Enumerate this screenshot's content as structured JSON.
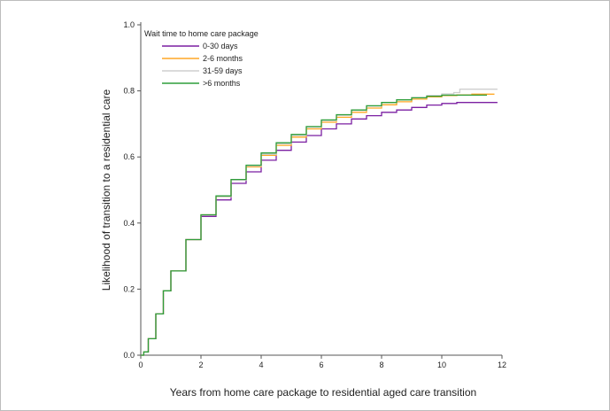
{
  "chart_data": {
    "type": "line",
    "title": "",
    "xlabel": "Years from home care package to residential aged care transition",
    "ylabel": "Likelihood of transition to a residential care",
    "xlim": [
      0,
      12
    ],
    "ylim": [
      0,
      1.0
    ],
    "xticks": [
      0,
      2,
      4,
      6,
      8,
      10,
      12
    ],
    "yticks": [
      "0.0",
      "0.2",
      "0.4",
      "0.6",
      "0.8",
      "1.0"
    ],
    "legend": {
      "title": "Wait time to home care package",
      "placement": "top-left"
    },
    "series": [
      {
        "name": "0-30 days",
        "color": "#7b1fa2",
        "x": [
          0,
          0.1,
          0.25,
          0.5,
          0.75,
          1,
          1.5,
          2,
          2.5,
          3,
          3.5,
          4,
          4.5,
          5,
          5.5,
          6,
          6.5,
          7,
          7.5,
          8,
          8.5,
          9,
          9.5,
          10,
          10.5,
          11,
          11.5,
          11.85
        ],
        "y": [
          0,
          0.01,
          0.05,
          0.125,
          0.195,
          0.255,
          0.35,
          0.42,
          0.47,
          0.52,
          0.555,
          0.59,
          0.62,
          0.645,
          0.665,
          0.685,
          0.7,
          0.715,
          0.725,
          0.735,
          0.742,
          0.75,
          0.757,
          0.762,
          0.765,
          0.765,
          0.765,
          0.765
        ]
      },
      {
        "name": "2-6 months",
        "color": "#ffa726",
        "x": [
          0,
          0.1,
          0.25,
          0.5,
          0.75,
          1,
          1.5,
          2,
          2.5,
          3,
          3.5,
          4,
          4.5,
          5,
          5.5,
          6,
          6.5,
          7,
          7.5,
          8,
          8.5,
          9,
          9.5,
          10,
          10.5,
          11,
          11.5,
          11.75
        ],
        "y": [
          0,
          0.01,
          0.05,
          0.125,
          0.195,
          0.255,
          0.35,
          0.425,
          0.48,
          0.53,
          0.57,
          0.605,
          0.635,
          0.66,
          0.685,
          0.705,
          0.72,
          0.735,
          0.748,
          0.758,
          0.767,
          0.775,
          0.782,
          0.786,
          0.788,
          0.79,
          0.79,
          0.79
        ]
      },
      {
        "name": "31-59 days",
        "color": "#cfcfcf",
        "x": [
          0,
          0.1,
          0.25,
          0.5,
          0.75,
          1,
          1.5,
          2,
          2.5,
          3,
          3.5,
          4,
          4.5,
          5,
          5.5,
          6,
          6.5,
          7,
          7.5,
          8,
          8.5,
          9,
          9.5,
          10,
          10.4,
          10.6,
          11,
          11.5,
          11.85
        ],
        "y": [
          0,
          0.01,
          0.05,
          0.125,
          0.195,
          0.255,
          0.35,
          0.425,
          0.48,
          0.53,
          0.573,
          0.608,
          0.64,
          0.665,
          0.69,
          0.71,
          0.726,
          0.741,
          0.754,
          0.765,
          0.773,
          0.78,
          0.786,
          0.791,
          0.795,
          0.805,
          0.805,
          0.805,
          0.805
        ]
      },
      {
        "name": ">6 months",
        "color": "#2e9e3a",
        "x": [
          0,
          0.1,
          0.25,
          0.5,
          0.75,
          1,
          1.5,
          2,
          2.5,
          3,
          3.5,
          4,
          4.5,
          5,
          5.5,
          6,
          6.5,
          7,
          7.5,
          8,
          8.5,
          9,
          9.5,
          10,
          10.5,
          11,
          11.5
        ],
        "y": [
          0,
          0.01,
          0.05,
          0.125,
          0.195,
          0.255,
          0.35,
          0.425,
          0.482,
          0.532,
          0.575,
          0.612,
          0.643,
          0.668,
          0.692,
          0.712,
          0.728,
          0.742,
          0.755,
          0.765,
          0.773,
          0.779,
          0.784,
          0.787,
          0.787,
          0.787,
          0.787
        ]
      }
    ]
  }
}
